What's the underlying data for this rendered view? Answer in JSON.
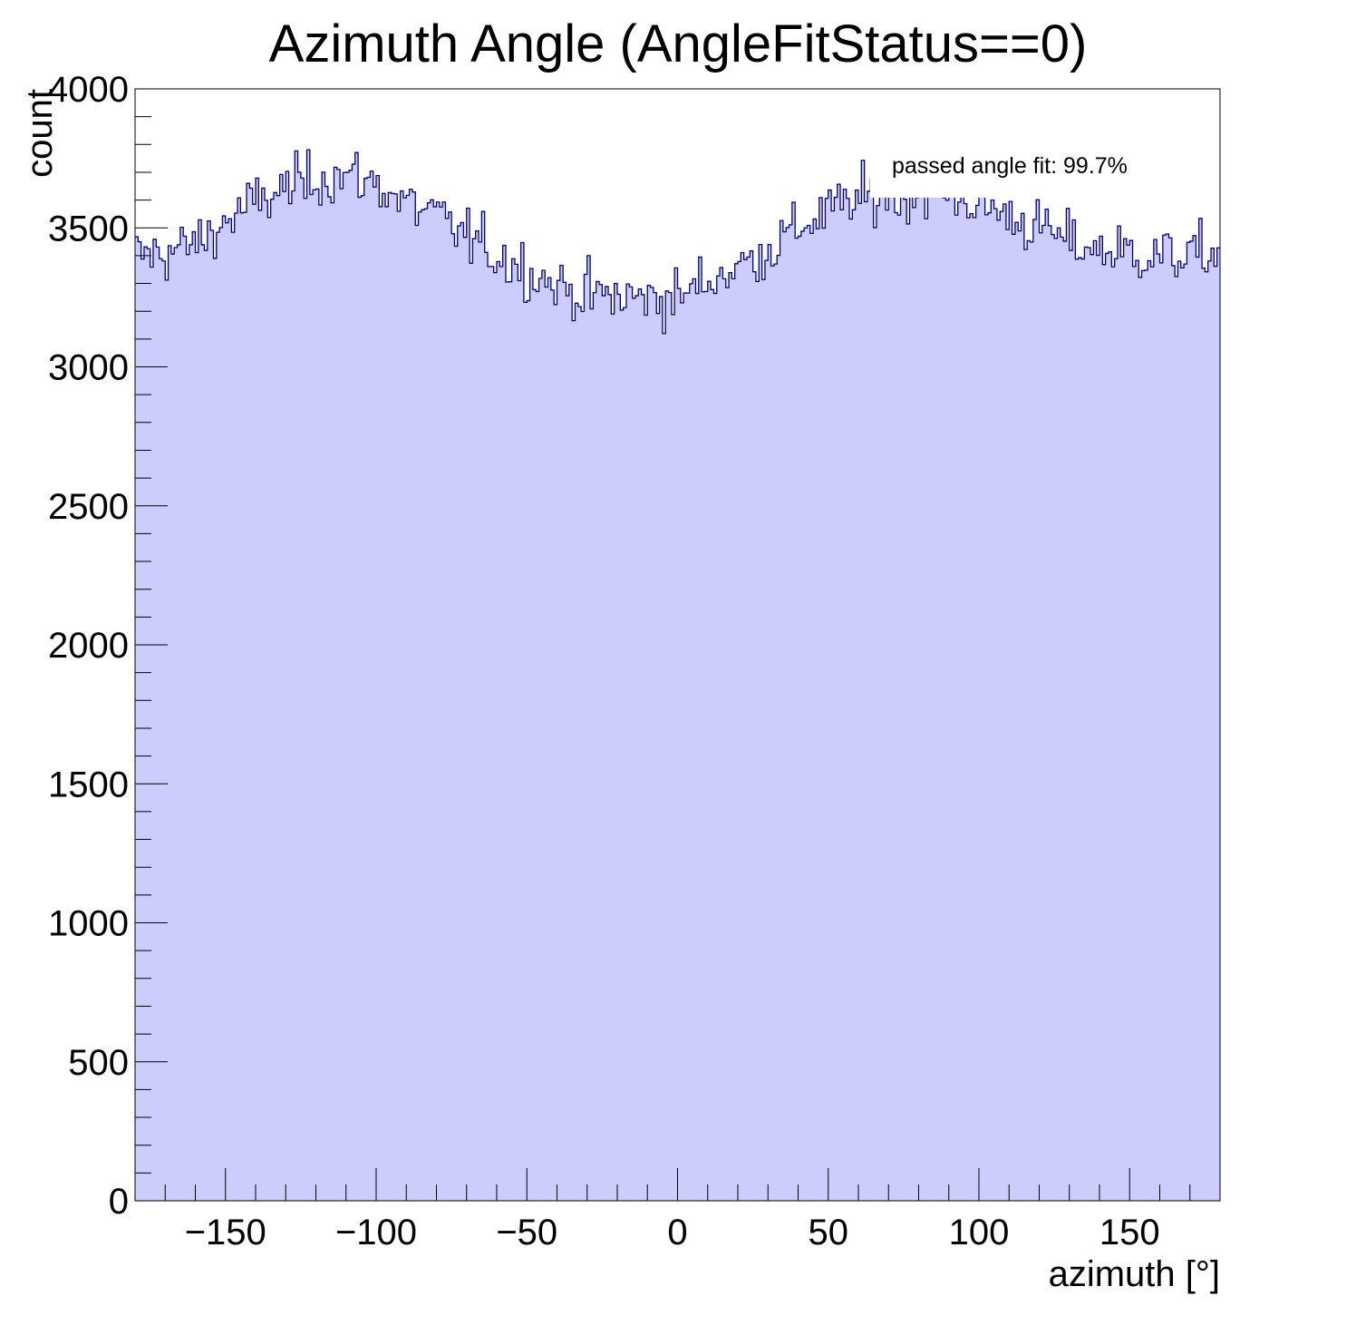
{
  "chart_data": {
    "type": "histogram",
    "title": "Azimuth Angle (AngleFitStatus==0)",
    "xlabel": "azimuth [°]",
    "ylabel": "count",
    "xlim": [
      -180,
      180
    ],
    "ylim": [
      0,
      4000
    ],
    "x_ticks": [
      -150,
      -100,
      -50,
      0,
      50,
      100,
      150
    ],
    "x_tick_labels": [
      "−150",
      "−100",
      "−50",
      "0",
      "50",
      "100",
      "150"
    ],
    "y_ticks": [
      0,
      500,
      1000,
      1500,
      2000,
      2500,
      3000,
      3500,
      4000
    ],
    "y_tick_labels": [
      "0",
      "500",
      "1000",
      "1500",
      "2000",
      "2500",
      "3000",
      "3500",
      "4000"
    ],
    "annotation": "passed angle fit: 99.7%",
    "n_bins": 360,
    "bin_width": 1,
    "profile": {
      "x": [
        -180,
        -170,
        -160,
        -150,
        -140,
        -130,
        -120,
        -110,
        -100,
        -90,
        -80,
        -70,
        -60,
        -50,
        -40,
        -30,
        -20,
        -10,
        0,
        10,
        20,
        30,
        40,
        50,
        60,
        70,
        80,
        90,
        100,
        110,
        120,
        130,
        140,
        150,
        160,
        170,
        180
      ],
      "counts": [
        3400,
        3410,
        3440,
        3520,
        3590,
        3640,
        3680,
        3690,
        3660,
        3590,
        3540,
        3470,
        3400,
        3350,
        3290,
        3260,
        3250,
        3250,
        3250,
        3310,
        3360,
        3420,
        3500,
        3560,
        3600,
        3620,
        3620,
        3610,
        3590,
        3540,
        3500,
        3450,
        3420,
        3410,
        3400,
        3400,
        3410
      ]
    },
    "colors": {
      "fill": "#ccccfd",
      "line": "#000080",
      "frame": "#000000"
    }
  }
}
